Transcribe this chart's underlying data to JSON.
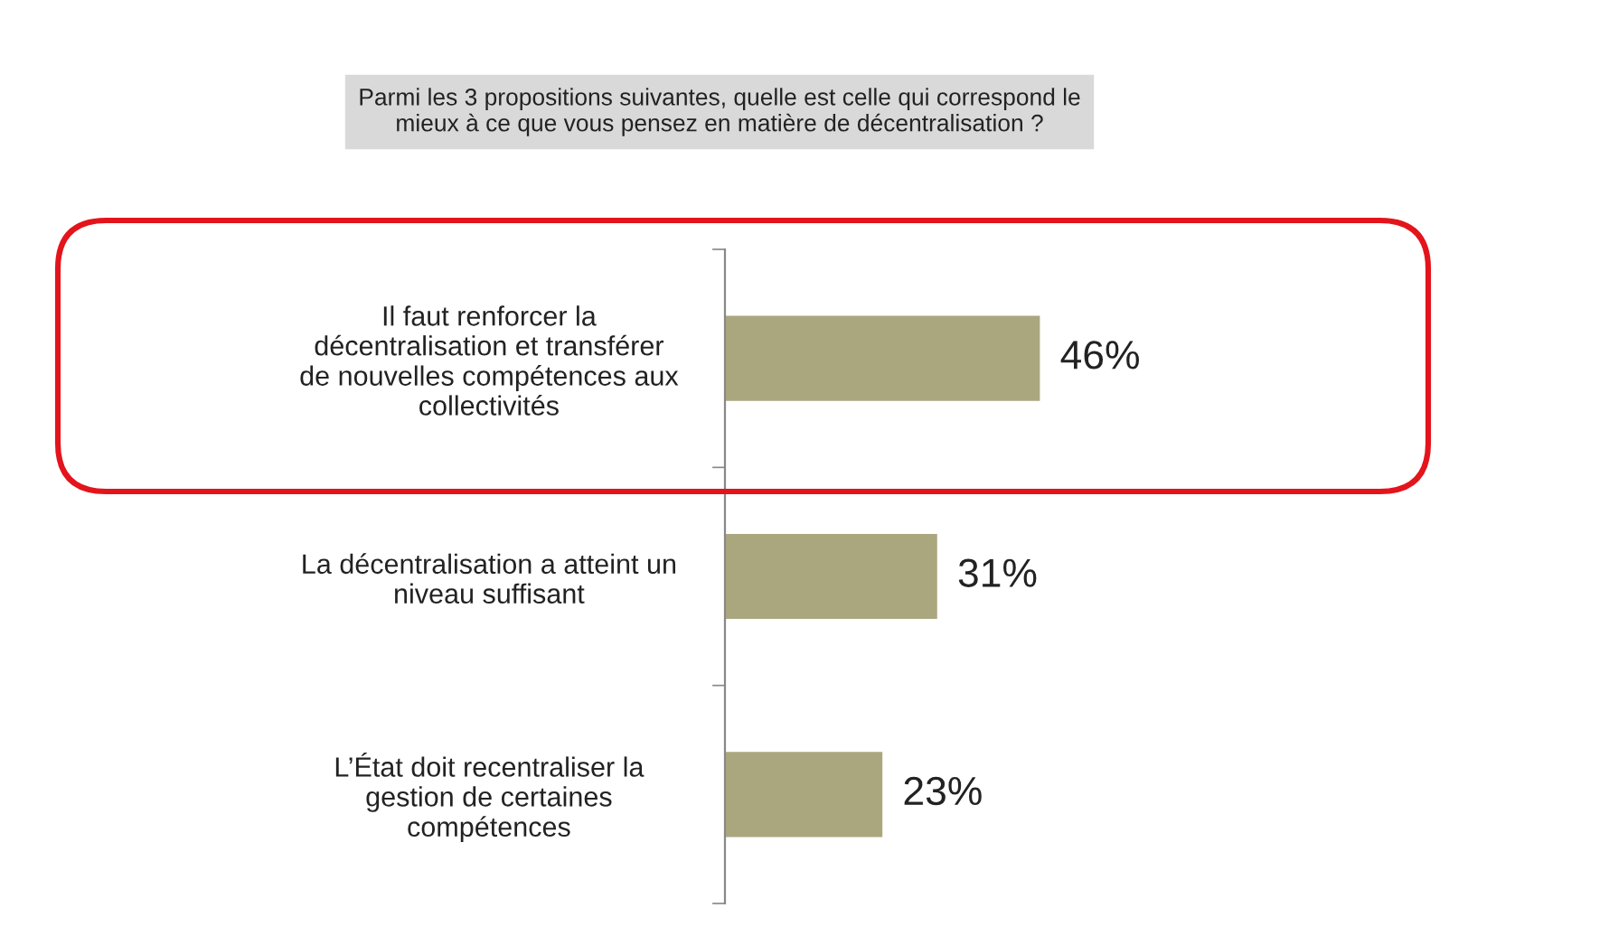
{
  "chart_data": {
    "type": "bar",
    "orientation": "horizontal",
    "title": "Parmi les 3 propositions suivantes, quelle est celle qui correspond le\nmieux à ce que vous pensez en matière de décentralisation ?",
    "categories": [
      "Il faut renforcer la\ndécentralisation et transférer\nde nouvelles compétences aux\ncollectivités",
      "La décentralisation a atteint un\nniveau suffisant",
      "L’État doit recentraliser la\ngestion de certaines\ncompétences"
    ],
    "values": [
      46,
      31,
      23
    ],
    "color": "#aaa77f",
    "value_labels": [
      "46%",
      "31%",
      "23%"
    ],
    "grid": false,
    "legend": false
  }
}
